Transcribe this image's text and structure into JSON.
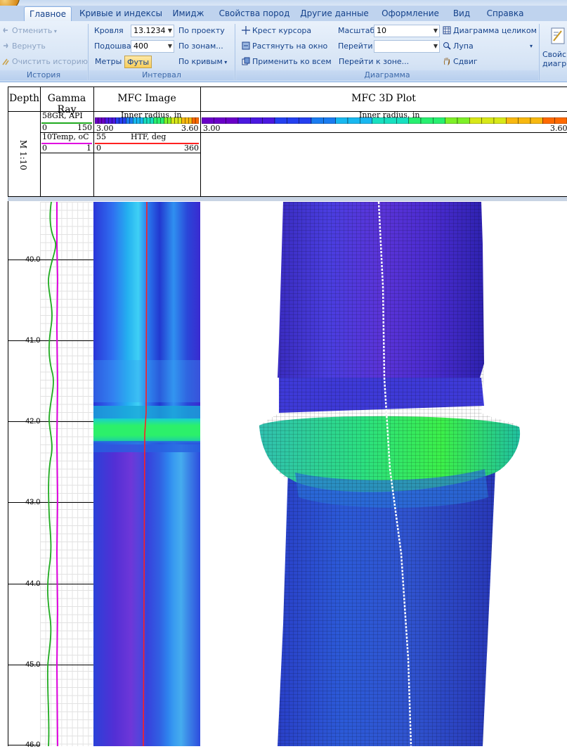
{
  "tabs": [
    "Главное",
    "Кривые и индексы",
    "Имидж",
    "Свойства пород",
    "Другие данные",
    "Оформление",
    "Вид",
    "Справка"
  ],
  "active_tab": "Главное",
  "ribbon": {
    "history": {
      "title": "История",
      "undo": "Отменить",
      "redo": "Вернуть",
      "clear": "Очистить историю"
    },
    "interval": {
      "title": "Интервал",
      "top_label": "Кровля",
      "top_value": "13.1234",
      "bottom_label": "Подошва",
      "bottom_value": "400",
      "by_project": "По проекту",
      "by_zones": "По зонам...",
      "by_curves": "По кривым",
      "meters": "Метры",
      "feet": "Футы"
    },
    "diagram": {
      "title": "Диаграмма",
      "cursor_cross": "Крест курсора",
      "stretch": "Растянуть на окно",
      "apply_all": "Применить ко всем",
      "scale_label": "Масштаб",
      "scale_value": "10",
      "goto_label": "Перейти",
      "goto_value": "",
      "goto_zone": "Перейти к зоне...",
      "whole_diagram": "Диаграмма целиком",
      "magnifier": "Лупа",
      "shift": "Сдвиг"
    },
    "properties": {
      "line1": "Свойс",
      "line2": "диагра"
    }
  },
  "log": {
    "headers": {
      "depth": "Depth",
      "gamma": "Gamma Ray",
      "mfc_image": "MFC Image",
      "mfc_3d": "MFC 3D Plot"
    },
    "scale": "M 1:10",
    "gamma_curves": {
      "gr_label": "GR, API",
      "gr_left_num": "58",
      "gr_min": "0",
      "gr_max": "150",
      "temp_label": "Temp, oC",
      "temp_left_num": "10",
      "temp_min": "0",
      "temp_max": "1"
    },
    "image_curves": {
      "radius_label": "Inner radius, in",
      "radius_min": "3.00",
      "radius_max": "3.60",
      "htf_label": "HTF, deg",
      "htf_left_num": "55",
      "htf_min": "0",
      "htf_max": "360"
    },
    "plot3d_curves": {
      "radius_label": "Inner radius, in",
      "radius_min": "3.00",
      "radius_max": "3.60"
    },
    "depth_labels": [
      "40.0",
      "41.0",
      "42.0",
      "43.0",
      "44.0",
      "45.0",
      "46.0"
    ],
    "colors": {
      "gr_curve": "#1faa1f",
      "temp_curve": "#e000e0",
      "htf_curve": "#ff2020",
      "palette_low": "#6a00c8",
      "palette_high": "#ff6a00"
    }
  }
}
